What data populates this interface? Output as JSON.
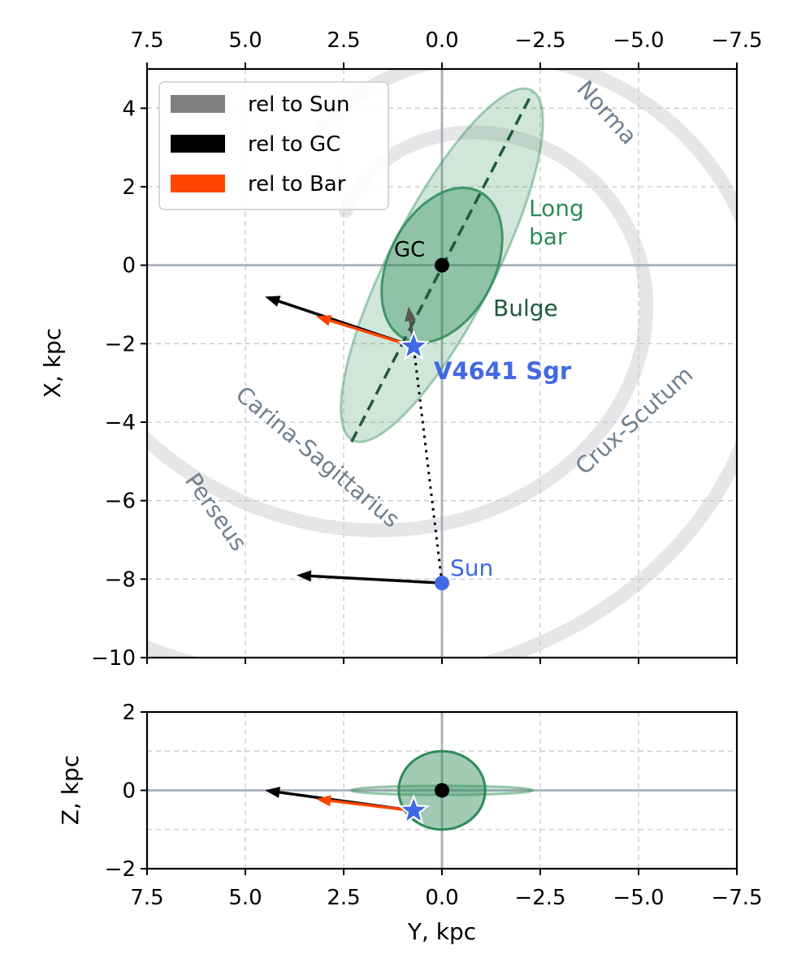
{
  "colors": {
    "arm": "#e6e6e8",
    "arm_label": "#708090",
    "axis_line": "#9aa6b2",
    "grid": "#c8c8c8",
    "bar_fill": "#2e8b57",
    "bar_dash": "#1d5a3e",
    "sun": "#4169e1",
    "arrow_sun": "#555555",
    "arrow_gc": "#000000",
    "arrow_bar": "#ff4500",
    "long_bar_label": "#2e8b57",
    "bulge_label": "#1d5a3e"
  },
  "chart_data": [
    {
      "id": "top",
      "type": "scatter",
      "xlabel": "Y, kpc",
      "ylabel": "X, kpc",
      "xlim": [
        7.5,
        -7.5
      ],
      "ylim": [
        -10,
        5
      ],
      "xticks": [
        7.5,
        5.0,
        2.5,
        0.0,
        -2.5,
        -5.0,
        -7.5
      ],
      "xtick_labels": [
        "7.5",
        "5.0",
        "2.5",
        "0.0",
        "−2.5",
        "−5.0",
        "−7.5"
      ],
      "yticks": [
        4,
        2,
        0,
        -2,
        -4,
        -6,
        -8,
        -10
      ],
      "ytick_labels": [
        "4",
        "2",
        "0",
        "−2",
        "−4",
        "−6",
        "−8",
        "−10"
      ],
      "grid": true,
      "legend": {
        "position": "upper-left",
        "entries": [
          {
            "label": "rel to Sun",
            "color": "#808080"
          },
          {
            "label": "rel to GC",
            "color": "#000000"
          },
          {
            "label": "rel to Bar",
            "color": "#ff4500"
          }
        ]
      },
      "points": [
        {
          "name": "GC",
          "y": 0.0,
          "x": 0.0
        },
        {
          "name": "Sun",
          "y": 0.0,
          "x": -8.1
        },
        {
          "name": "V4641 Sgr",
          "y": 0.72,
          "x": -2.07
        }
      ],
      "labels": {
        "gc": "GC",
        "sun": "Sun",
        "star": "V4641 Sgr",
        "long_bar": [
          "Long",
          "bar"
        ],
        "bulge": "Bulge"
      },
      "arms": [
        {
          "name": "Norma",
          "label": "Norma"
        },
        {
          "name": "Crux-Scutum",
          "label": "Crux-Scutum"
        },
        {
          "name": "Carina-Sagittarius",
          "label": "Carina-Sagittarius"
        },
        {
          "name": "Perseus",
          "label": "Perseus"
        }
      ],
      "long_bar": {
        "center_y": 0.0,
        "center_x": 0.0,
        "semi_major": 5.0,
        "semi_minor": 1.35,
        "angle_deg": 27
      },
      "bulge": {
        "center_y": 0.0,
        "center_x": 0.0,
        "semi_major": 2.1,
        "semi_minor": 1.35,
        "angle_deg": 27
      },
      "bar_axis": {
        "from": [
          2.3,
          -4.5
        ],
        "to": [
          -2.3,
          4.4
        ]
      },
      "arrows": [
        {
          "name": "sun-rel-gc",
          "color": "#000000",
          "from": [
            0.0,
            -8.1
          ],
          "to": [
            3.7,
            -7.9
          ]
        },
        {
          "name": "star-rel-gc",
          "color": "#000000",
          "from": [
            0.72,
            -2.07
          ],
          "to": [
            4.5,
            -0.8
          ]
        },
        {
          "name": "star-rel-bar",
          "color": "#ff4500",
          "from": [
            0.72,
            -2.07
          ],
          "to": [
            3.2,
            -1.3
          ]
        },
        {
          "name": "star-rel-sun",
          "color": "#555555",
          "from": [
            0.72,
            -2.07
          ],
          "to": [
            0.85,
            -1.05
          ]
        }
      ]
    },
    {
      "id": "bottom",
      "type": "scatter",
      "xlabel": "Y, kpc",
      "ylabel": "Z, kpc",
      "xlim": [
        7.5,
        -7.5
      ],
      "ylim": [
        -2,
        2
      ],
      "xticks": [
        7.5,
        5.0,
        2.5,
        0.0,
        -2.5,
        -5.0,
        -7.5
      ],
      "xtick_labels": [
        "7.5",
        "5.0",
        "2.5",
        "0.0",
        "−2.5",
        "−5.0",
        "−7.5"
      ],
      "yticks": [
        2,
        0,
        -2
      ],
      "ytick_labels": [
        "2",
        "0",
        "−2"
      ],
      "grid": true,
      "points": [
        {
          "name": "GC",
          "y": 0.0,
          "z": 0.0
        },
        {
          "name": "V4641 Sgr",
          "y": 0.72,
          "z": -0.52
        }
      ],
      "bulge": {
        "center_y": 0.0,
        "center_z": 0.0,
        "semi_y": 1.1,
        "semi_z": 1.0
      },
      "long_bar": {
        "center_y": 0.0,
        "center_z": 0.0,
        "semi_y": 2.3,
        "semi_z": 0.12
      },
      "arrows": [
        {
          "name": "star-rel-gc",
          "color": "#000000",
          "from": [
            0.72,
            -0.52
          ],
          "to": [
            4.5,
            0.0
          ]
        },
        {
          "name": "star-rel-bar",
          "color": "#ff4500",
          "from": [
            0.72,
            -0.52
          ],
          "to": [
            3.2,
            -0.22
          ]
        }
      ]
    }
  ]
}
